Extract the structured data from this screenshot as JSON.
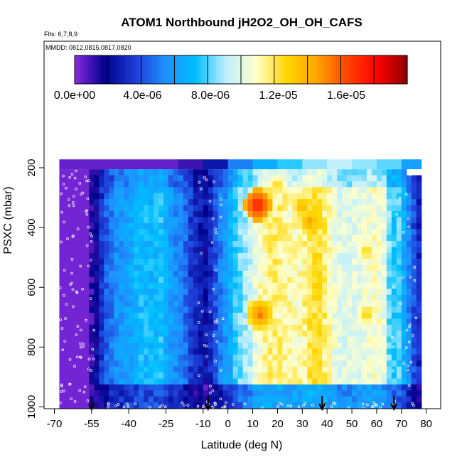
{
  "chart_data": {
    "type": "heatmap",
    "title": "ATOM1 Northbound jH2O2_OH_OH_CAFS",
    "flights_note": "Flts: 6,7,8,9",
    "dates_note": "MMDD: 0812,0815,0817,0820",
    "xlabel": "Latitude (deg N)",
    "ylabel": "PSXC (mbar)",
    "xlim": [
      -70,
      80
    ],
    "ylim": [
      1010,
      170
    ],
    "x_ticks": [
      -70,
      -55,
      -40,
      -25,
      -10,
      0,
      10,
      20,
      30,
      40,
      50,
      60,
      70,
      80
    ],
    "y_ticks": [
      200,
      400,
      600,
      800,
      1000
    ],
    "colorbar": {
      "min": 0,
      "max": 1.96e-05,
      "tick_values": [
        0,
        4e-06,
        8e-06,
        1.2e-05,
        1.6e-05
      ],
      "tick_labels": [
        "0.0e+00",
        "4.0e-06",
        "8.0e-06",
        "1.2e-05",
        "1.6e-05"
      ],
      "colors": [
        "#8a2be2",
        "#00008b",
        "#1e3cd6",
        "#1e90ff",
        "#00bfff",
        "#bfefff",
        "#ffffcc",
        "#ffd700",
        "#ffa500",
        "#ff4500",
        "#ff0000",
        "#8b0000"
      ]
    },
    "arrow_latitudes": [
      -55,
      -8,
      38,
      67
    ],
    "lat_profile": [
      [
        -68,
        0.3
      ],
      [
        -58,
        0.3
      ],
      [
        -55,
        1.2
      ],
      [
        -53,
        2.0
      ],
      [
        -50,
        4.0
      ],
      [
        -45,
        5.5
      ],
      [
        -40,
        6.0
      ],
      [
        -35,
        7.0
      ],
      [
        -30,
        6.8
      ],
      [
        -27,
        7.2
      ],
      [
        -22,
        5.5
      ],
      [
        -18,
        5.0
      ],
      [
        -15,
        3.5
      ],
      [
        -12,
        2.8
      ],
      [
        -9,
        2.2
      ],
      [
        -6,
        3.5
      ],
      [
        -3,
        5.0
      ],
      [
        0,
        6.0
      ],
      [
        3,
        7.5
      ],
      [
        6,
        8.5
      ],
      [
        9,
        9.2
      ],
      [
        12,
        10.5
      ],
      [
        15,
        11.0
      ],
      [
        18,
        11.5
      ],
      [
        22,
        11.2
      ],
      [
        26,
        10.8
      ],
      [
        30,
        11.0
      ],
      [
        33,
        11.8
      ],
      [
        36,
        12.2
      ],
      [
        39,
        11.5
      ],
      [
        42,
        10.5
      ],
      [
        45,
        9.8
      ],
      [
        50,
        9.8
      ],
      [
        55,
        10.2
      ],
      [
        60,
        10.5
      ],
      [
        64,
        9.8
      ],
      [
        66,
        6.5
      ],
      [
        68,
        8.5
      ],
      [
        70,
        7.0
      ],
      [
        74,
        4.5
      ],
      [
        78,
        2.5
      ]
    ],
    "hotspots": [
      {
        "lat": 12,
        "p": 325,
        "value": 17.5
      },
      {
        "lat": 16,
        "p": 290,
        "value": 13.0
      },
      {
        "lat": 20,
        "p": 260,
        "value": 12.8
      },
      {
        "lat": 30,
        "p": 330,
        "value": 14.0
      },
      {
        "lat": 33,
        "p": 380,
        "value": 14.5
      },
      {
        "lat": 13,
        "p": 690,
        "value": 15.5
      },
      {
        "lat": 36,
        "p": 600,
        "value": 13.5
      },
      {
        "lat": 56,
        "p": 690,
        "value": 13.0
      },
      {
        "lat": 56,
        "p": 480,
        "value": 12.8
      },
      {
        "lat": 35,
        "p": 810,
        "value": 12.8
      }
    ],
    "top_layer": [
      {
        "from": -68,
        "to": -20,
        "value": 0.5
      },
      {
        "from": -20,
        "to": -10,
        "value": 1.0
      },
      {
        "from": -10,
        "to": 0,
        "value": 2.5
      },
      {
        "from": 0,
        "to": 10,
        "value": 5.0
      },
      {
        "from": 10,
        "to": 20,
        "value": 6.5
      },
      {
        "from": 20,
        "to": 30,
        "value": 7.5
      },
      {
        "from": 30,
        "to": 40,
        "value": 8.5
      },
      {
        "from": 40,
        "to": 50,
        "value": 9.0
      },
      {
        "from": 50,
        "to": 60,
        "value": 8.5
      },
      {
        "from": 60,
        "to": 70,
        "value": 8.0
      },
      {
        "from": 70,
        "to": 78,
        "value": 6.0
      }
    ]
  }
}
